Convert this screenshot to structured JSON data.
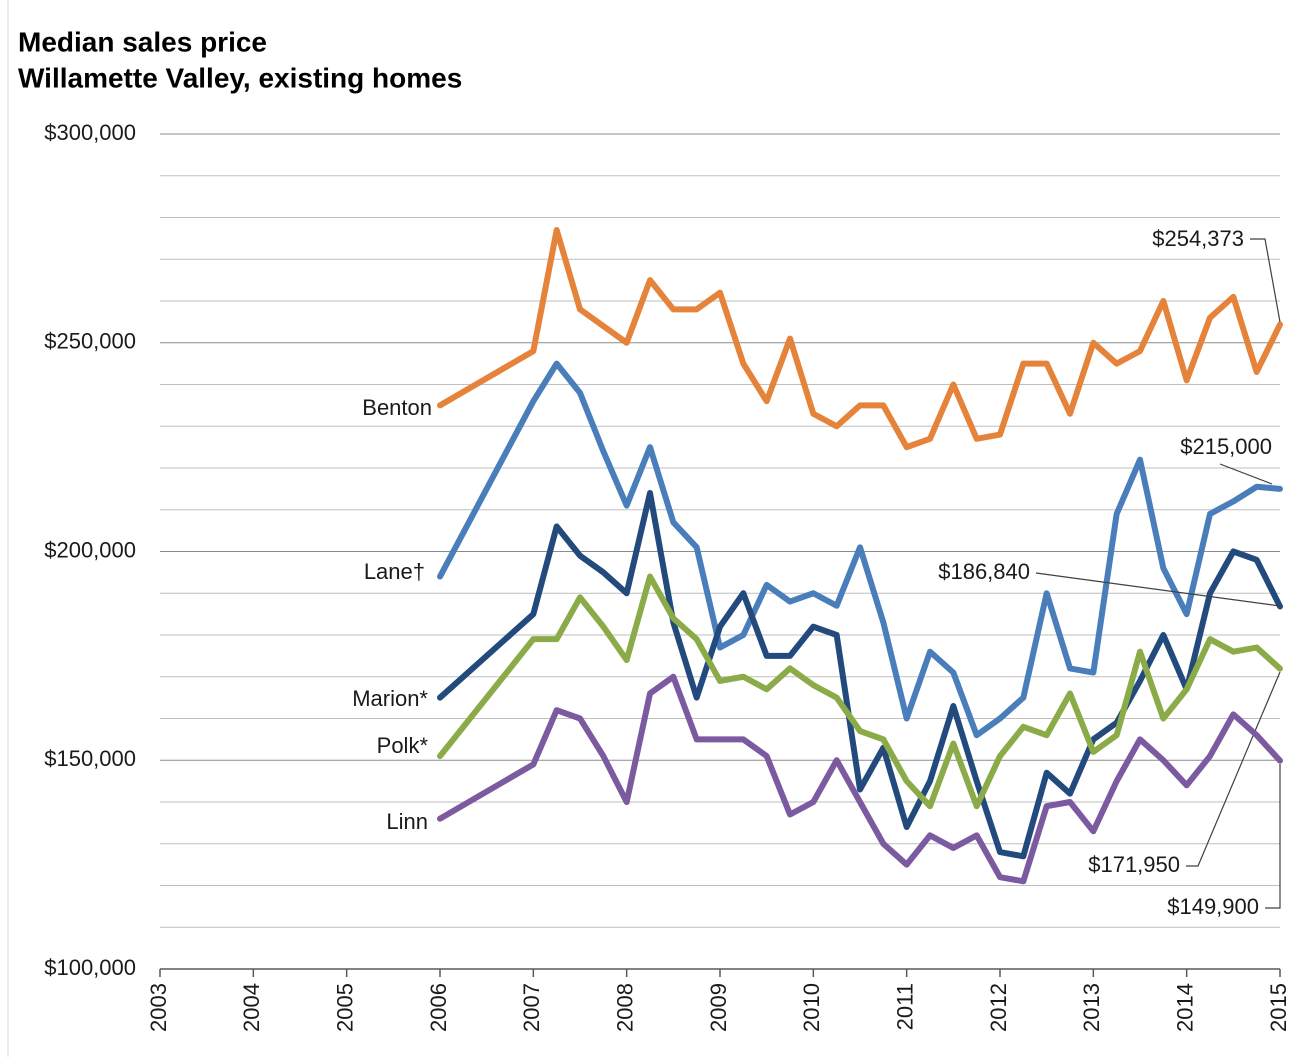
{
  "chart_data": {
    "type": "line",
    "title": "Median sales price",
    "subtitle": "Willamette Valley, existing homes",
    "x": [
      2006,
      2007,
      2007.25,
      2007.5,
      2007.75,
      2008,
      2008.25,
      2008.5,
      2008.75,
      2009,
      2009.25,
      2009.5,
      2009.75,
      2010,
      2010.25,
      2010.5,
      2010.75,
      2011,
      2011.25,
      2011.5,
      2011.75,
      2012,
      2012.25,
      2012.5,
      2012.75,
      2013,
      2013.25,
      2013.5,
      2013.75,
      2014,
      2014.25,
      2014.5,
      2014.75,
      2015
    ],
    "xlim": [
      2003,
      2015
    ],
    "xticks": [
      2003,
      2004,
      2005,
      2006,
      2007,
      2008,
      2009,
      2010,
      2011,
      2012,
      2013,
      2014,
      2015
    ],
    "ylim": [
      100000,
      300000
    ],
    "yticks": [
      {
        "value": 100000,
        "label": "$100,000"
      },
      {
        "value": 150000,
        "label": "$150,000"
      },
      {
        "value": 200000,
        "label": "$200,000"
      },
      {
        "value": 250000,
        "label": "$250,000"
      },
      {
        "value": 300000,
        "label": "$300,000"
      }
    ],
    "minor_yticks": [
      110000,
      120000,
      130000,
      140000,
      160000,
      170000,
      180000,
      190000,
      210000,
      220000,
      230000,
      240000,
      260000,
      270000,
      280000,
      290000
    ],
    "grid": true,
    "series": [
      {
        "name": "Benton",
        "color": "#e5833a",
        "end_label": "$254,373",
        "values": [
          235000,
          248000,
          277000,
          258000,
          254000,
          250000,
          265000,
          258000,
          258000,
          262000,
          245000,
          236000,
          251000,
          233000,
          230000,
          235000,
          235000,
          225000,
          227000,
          240000,
          227000,
          228000,
          245000,
          245000,
          233000,
          250000,
          245000,
          248000,
          260000,
          241000,
          256000,
          261000,
          243000,
          254373
        ]
      },
      {
        "name": "Lane†",
        "color": "#4a7ebb",
        "end_label": "$215,000",
        "values": [
          194000,
          236000,
          245000,
          238000,
          224000,
          211000,
          225000,
          207000,
          201000,
          177000,
          180000,
          192000,
          188000,
          190000,
          187000,
          201000,
          183000,
          160000,
          176000,
          171000,
          156000,
          160000,
          165000,
          190000,
          172000,
          171000,
          209000,
          222000,
          196000,
          185000,
          209000,
          212000,
          215500,
          215000
        ]
      },
      {
        "name": "Marion*",
        "color": "#234a7c",
        "end_label": "$186,840",
        "values": [
          165000,
          185000,
          206000,
          199000,
          195000,
          190000,
          214000,
          183000,
          165000,
          182000,
          190000,
          175000,
          175000,
          182000,
          180000,
          143000,
          153000,
          134000,
          145000,
          163000,
          145000,
          128000,
          127000,
          147000,
          142000,
          155000,
          159000,
          169000,
          180000,
          167000,
          190000,
          200000,
          198000,
          186840
        ]
      },
      {
        "name": "Polk*",
        "color": "#8aab47",
        "end_label": "$171,950",
        "values": [
          151000,
          179000,
          179000,
          189000,
          182000,
          174000,
          194000,
          184000,
          179000,
          169000,
          170000,
          167000,
          172000,
          168000,
          165000,
          157000,
          155000,
          145000,
          139000,
          154000,
          139000,
          151000,
          158000,
          156000,
          166000,
          152000,
          156000,
          176000,
          160000,
          167000,
          179000,
          176000,
          177000,
          171950
        ]
      },
      {
        "name": "Linn",
        "color": "#7b5aa0",
        "end_label": "$149,900",
        "values": [
          136000,
          149000,
          162000,
          160000,
          151000,
          140000,
          166000,
          170000,
          155000,
          155000,
          155000,
          151000,
          137000,
          140000,
          150000,
          140000,
          130000,
          125000,
          132000,
          129000,
          132000,
          122000,
          121000,
          139000,
          140000,
          133000,
          145000,
          155000,
          150000,
          144000,
          151000,
          161000,
          156000,
          149900
        ]
      }
    ]
  }
}
